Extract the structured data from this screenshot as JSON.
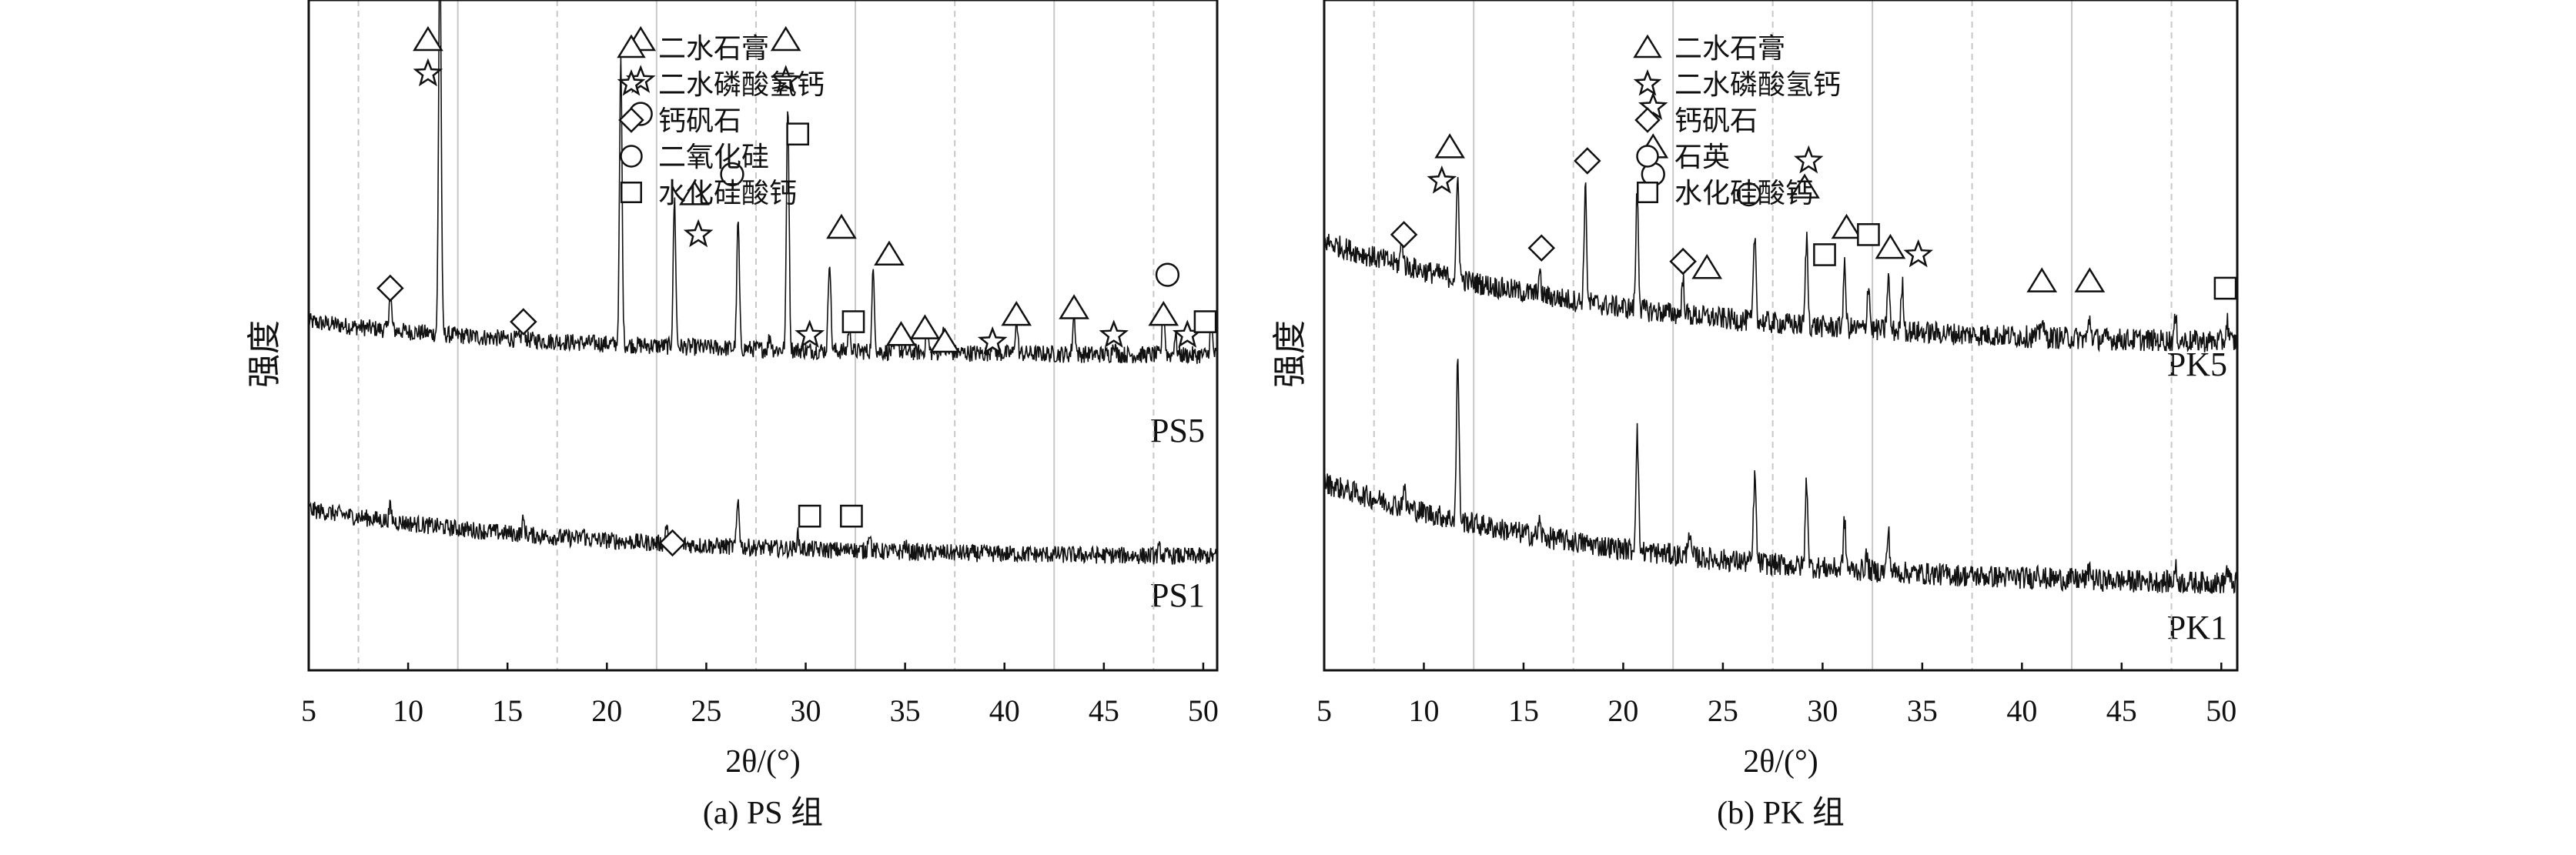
{
  "chart_data": [
    {
      "type": "line",
      "caption": "(a) PS 组",
      "xlabel": "2θ/(°)",
      "ylabel": "强度",
      "xlim": [
        5,
        50.7
      ],
      "ylim": [
        0,
        100
      ],
      "xticks": [
        "5",
        "10",
        "15",
        "20",
        "25",
        "30",
        "35",
        "40",
        "45",
        "50"
      ],
      "grid": "vertical, light, every 2.5° offset",
      "legend_position": "top-right",
      "legend": [
        {
          "symbol": "triangle",
          "label": "二水石膏"
        },
        {
          "symbol": "star",
          "label": "二水磷酸氢钙"
        },
        {
          "symbol": "diamond",
          "label": "钙矾石"
        },
        {
          "symbol": "circle",
          "label": "二氧化硅"
        },
        {
          "symbol": "square",
          "label": "水化硅酸钙"
        }
      ],
      "series": [
        {
          "name": "PS5",
          "baseline": [
            52,
            47
          ],
          "peaks": [
            [
              9.1,
              6
            ],
            [
              11.6,
              60
            ],
            [
              15.8,
              3
            ],
            [
              20.7,
              42
            ],
            [
              23.4,
              22
            ],
            [
              26.6,
              19
            ],
            [
              28.2,
              2
            ],
            [
              29.1,
              37
            ],
            [
              31.2,
              14
            ],
            [
              32.2,
              4
            ],
            [
              33.4,
              12
            ],
            [
              34.6,
              3
            ],
            [
              36.1,
              4
            ],
            [
              36.9,
              3
            ],
            [
              39.4,
              2
            ],
            [
              40.6,
              5
            ],
            [
              43.5,
              6
            ],
            [
              45.5,
              2
            ],
            [
              48.0,
              7
            ],
            [
              48.6,
              3
            ],
            [
              50.4,
              5
            ]
          ]
        },
        {
          "name": "PS1",
          "baseline": [
            24,
            17
          ],
          "peaks": [
            [
              9.1,
              2
            ],
            [
              15.8,
              2
            ],
            [
              18.8,
              1
            ],
            [
              23.0,
              3
            ],
            [
              26.6,
              7
            ],
            [
              29.6,
              2
            ],
            [
              32.3,
              1
            ],
            [
              33.2,
              3
            ],
            [
              35.0,
              1
            ],
            [
              47.8,
              1
            ]
          ]
        }
      ],
      "markers": [
        [
          "triangle",
          11.0,
          94
        ],
        [
          "star",
          11.0,
          89
        ],
        [
          "diamond",
          9.1,
          57
        ],
        [
          "diamond",
          15.8,
          52
        ],
        [
          "triangle",
          21.7,
          94
        ],
        [
          "star",
          21.7,
          88
        ],
        [
          "circle",
          21.7,
          83
        ],
        [
          "triangle",
          24.4,
          71
        ],
        [
          "star",
          24.6,
          65
        ],
        [
          "circle",
          26.3,
          74
        ],
        [
          "triangle",
          29.0,
          94
        ],
        [
          "star",
          29.0,
          88
        ],
        [
          "square",
          29.6,
          80
        ],
        [
          "star",
          30.2,
          50
        ],
        [
          "triangle",
          31.8,
          66
        ],
        [
          "square",
          32.4,
          52
        ],
        [
          "triangle",
          34.2,
          62
        ],
        [
          "triangle",
          34.8,
          50
        ],
        [
          "triangle",
          36.0,
          51
        ],
        [
          "triangle",
          37.0,
          49
        ],
        [
          "star",
          39.4,
          49
        ],
        [
          "triangle",
          40.6,
          53
        ],
        [
          "triangle",
          43.5,
          54
        ],
        [
          "star",
          45.5,
          50
        ],
        [
          "circle",
          48.2,
          59
        ],
        [
          "triangle",
          48.0,
          53
        ],
        [
          "star",
          49.2,
          50
        ],
        [
          "square",
          50.1,
          52
        ],
        [
          "diamond",
          23.3,
          19
        ],
        [
          "square",
          30.2,
          23
        ],
        [
          "square",
          32.3,
          23
        ]
      ]
    },
    {
      "type": "line",
      "caption": "(b) PK 组",
      "xlabel": "2θ/(°)",
      "ylabel": "强度",
      "xlim": [
        5,
        50.8
      ],
      "ylim": [
        0,
        100
      ],
      "xticks": [
        "5",
        "10",
        "15",
        "20",
        "25",
        "30",
        "35",
        "40",
        "45",
        "50"
      ],
      "grid": "vertical, light, every 2.5° offset",
      "legend_position": "top-right",
      "legend": [
        {
          "symbol": "triangle",
          "label": "二水石膏"
        },
        {
          "symbol": "star",
          "label": "二水磷酸氢钙"
        },
        {
          "symbol": "diamond",
          "label": "钙矾石"
        },
        {
          "symbol": "circle",
          "label": "石英"
        },
        {
          "symbol": "square",
          "label": "水化硅酸钙"
        }
      ],
      "series": [
        {
          "name": "PK5",
          "baseline": [
            64,
            49
          ],
          "peaks": [
            [
              8.9,
              4
            ],
            [
              11.7,
              15
            ],
            [
              15.8,
              3
            ],
            [
              18.1,
              17
            ],
            [
              20.7,
              18
            ],
            [
              23.0,
              5
            ],
            [
              26.6,
              13
            ],
            [
              29.2,
              13
            ],
            [
              31.1,
              9
            ],
            [
              32.3,
              7
            ],
            [
              33.3,
              8
            ],
            [
              34.0,
              7
            ],
            [
              41.0,
              3
            ],
            [
              43.4,
              3
            ],
            [
              47.7,
              3
            ],
            [
              50.3,
              3
            ]
          ]
        },
        {
          "name": "PK1",
          "baseline": [
            28,
            13
          ],
          "peaks": [
            [
              9.0,
              3
            ],
            [
              11.7,
              24
            ],
            [
              15.8,
              2
            ],
            [
              20.7,
              18
            ],
            [
              23.3,
              4
            ],
            [
              26.6,
              13
            ],
            [
              29.2,
              13
            ],
            [
              31.1,
              7
            ],
            [
              32.2,
              2
            ],
            [
              33.3,
              6
            ],
            [
              40.8,
              2
            ],
            [
              43.4,
              2
            ],
            [
              47.7,
              2
            ],
            [
              50.3,
              2
            ]
          ]
        }
      ],
      "markers": [
        [
          "diamond",
          9.0,
          65
        ],
        [
          "triangle",
          11.3,
          78
        ],
        [
          "star",
          10.9,
          73
        ],
        [
          "diamond",
          15.9,
          63
        ],
        [
          "diamond",
          18.2,
          76
        ],
        [
          "star",
          21.5,
          84
        ],
        [
          "triangle",
          21.5,
          78
        ],
        [
          "circle",
          21.5,
          74
        ],
        [
          "diamond",
          23.0,
          61
        ],
        [
          "triangle",
          24.2,
          60
        ],
        [
          "circle",
          26.3,
          71
        ],
        [
          "star",
          29.3,
          76
        ],
        [
          "triangle",
          29.1,
          72
        ],
        [
          "square",
          30.1,
          62
        ],
        [
          "triangle",
          31.2,
          66
        ],
        [
          "square",
          32.3,
          65
        ],
        [
          "triangle",
          33.4,
          63
        ],
        [
          "star",
          34.8,
          62
        ],
        [
          "triangle",
          41.0,
          58
        ],
        [
          "triangle",
          43.4,
          58
        ],
        [
          "square",
          50.2,
          57
        ]
      ]
    }
  ],
  "colors": {
    "line": "#111111",
    "grid": "#c8c8c8",
    "axis": "#111111"
  }
}
